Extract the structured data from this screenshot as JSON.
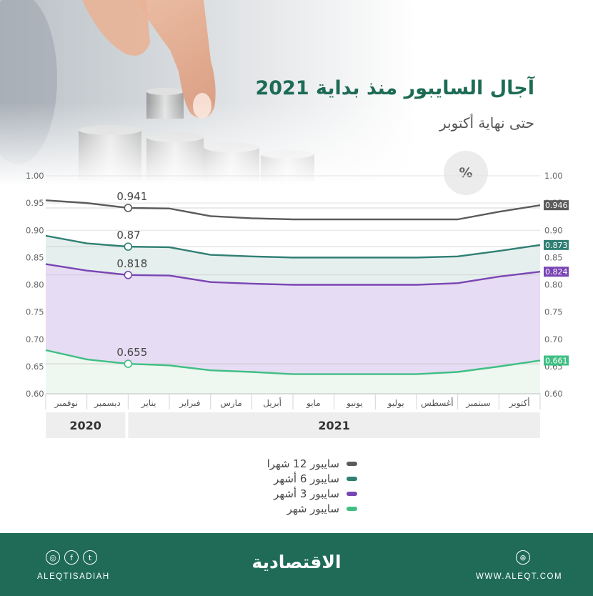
{
  "header": {
    "title": "آجال السايبور منذ بداية 2021",
    "subtitle": "حتى نهاية أكتوبر",
    "unit": "%"
  },
  "chart_data": {
    "type": "area",
    "ylim": [
      0.6,
      1.0
    ],
    "yticks": [
      "0.60",
      "0.65",
      "0.70",
      "0.75",
      "0.80",
      "0.85",
      "0.90",
      "0.95",
      "1.00"
    ],
    "right_yticks": [
      "0.60",
      "0.65",
      "0.70",
      "0.75",
      "0.80",
      "0.85",
      "0.90",
      "0.95",
      "1.00"
    ],
    "months": [
      "نوفمبر",
      "ديسمبر",
      "يناير",
      "فبراير",
      "مارس",
      "أبريل",
      "مايو",
      "يونيو",
      "يوليو",
      "أغسطس",
      "سبتمبر",
      "أكتوبر"
    ],
    "years": [
      "2020",
      "2021"
    ],
    "x": [
      0,
      1,
      2,
      3,
      4,
      5,
      6,
      7,
      8,
      9,
      10,
      11,
      12
    ],
    "series": [
      {
        "name": "سايبور 12 شهرا",
        "color": "#5b5b5b",
        "fill": "none",
        "values": [
          0.955,
          0.95,
          0.941,
          0.94,
          0.926,
          0.922,
          0.92,
          0.92,
          0.92,
          0.92,
          0.92,
          0.934,
          0.946
        ],
        "start_label": "0.941",
        "end_label": "0.946"
      },
      {
        "name": "سايبور 6 أشهر",
        "color": "#2f7f73",
        "fill": "#e5efee",
        "values": [
          0.89,
          0.876,
          0.87,
          0.869,
          0.855,
          0.852,
          0.85,
          0.85,
          0.85,
          0.85,
          0.852,
          0.862,
          0.873
        ],
        "start_label": "0.87",
        "end_label": "0.873"
      },
      {
        "name": "سايبور 3 أشهر",
        "color": "#7a45b4",
        "fill": "#e6dcf3",
        "values": [
          0.838,
          0.826,
          0.818,
          0.817,
          0.805,
          0.802,
          0.8,
          0.8,
          0.8,
          0.8,
          0.803,
          0.815,
          0.824
        ],
        "start_label": "0.818",
        "end_label": "0.824"
      },
      {
        "name": "سايبور شهر",
        "color": "#3fbf84",
        "fill": "#eef7f0",
        "values": [
          0.68,
          0.663,
          0.655,
          0.652,
          0.643,
          0.64,
          0.636,
          0.636,
          0.636,
          0.636,
          0.64,
          0.65,
          0.661
        ],
        "start_label": "0.655",
        "end_label": "0.661"
      }
    ]
  },
  "footer": {
    "brand": "الاقتصادية",
    "handle": "ALEQTISADIAH",
    "website": "WWW.ALEQT.COM",
    "social_icons": [
      "instagram-icon",
      "facebook-icon",
      "twitter-icon"
    ],
    "social_glyphs": [
      "◎",
      "f",
      "t"
    ],
    "web_glyph": "⊛"
  }
}
